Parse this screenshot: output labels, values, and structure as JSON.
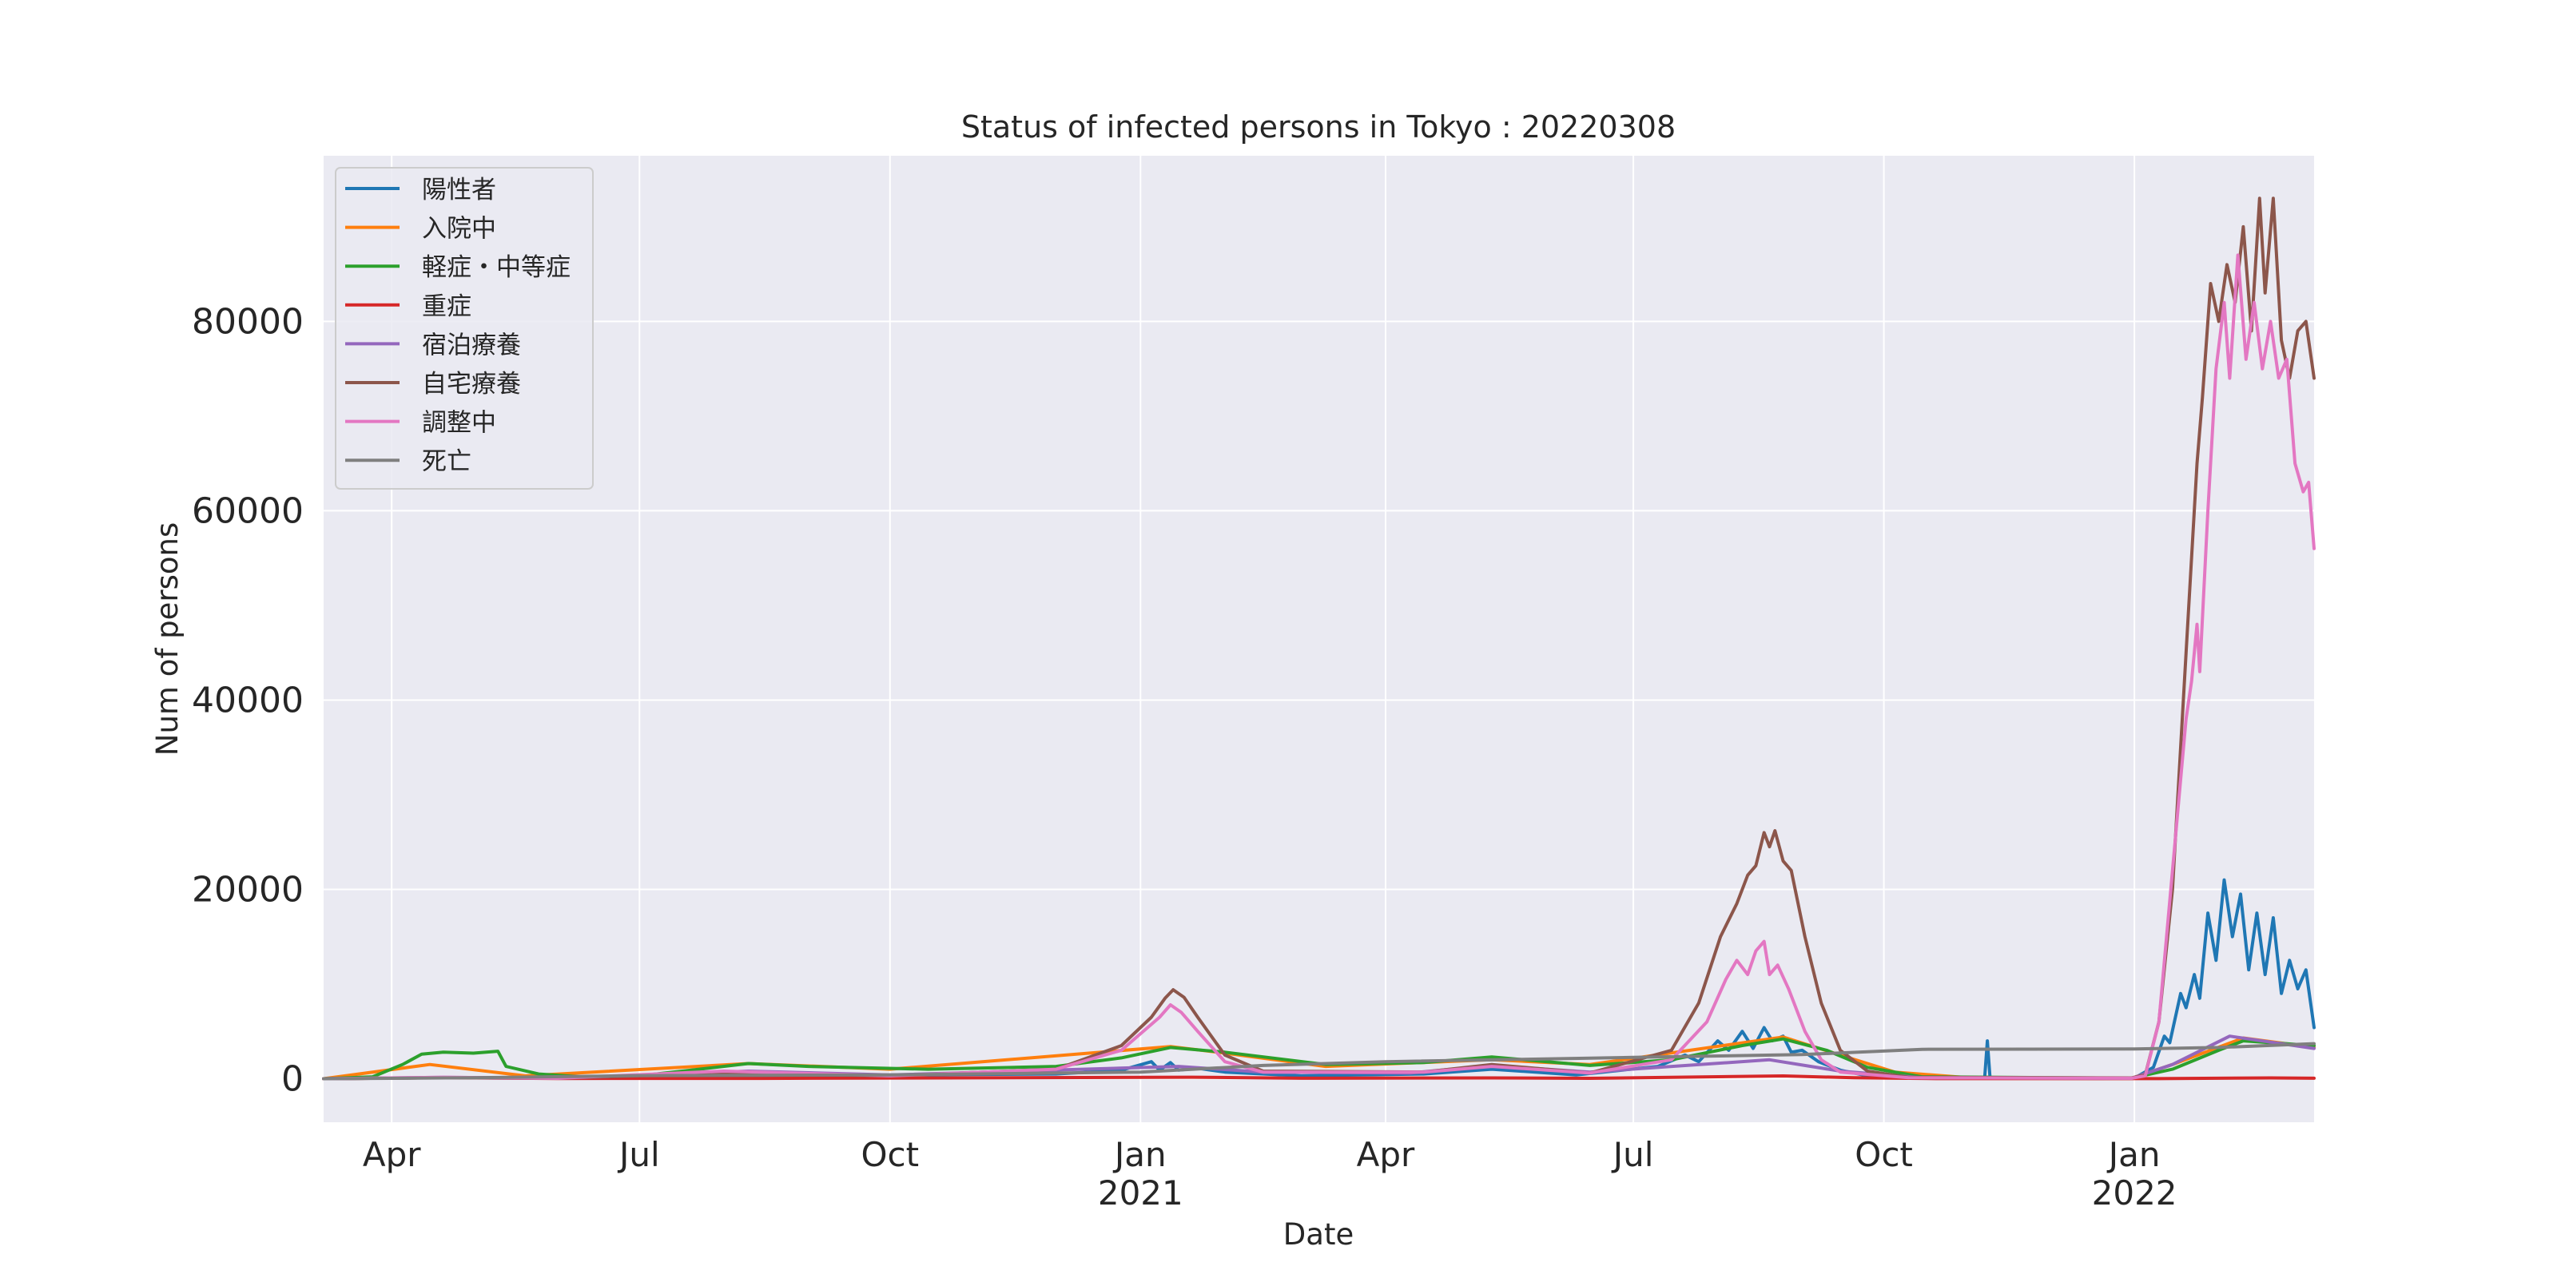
{
  "chart_data": {
    "type": "line",
    "title": "Status of infected persons in Tokyo : 20220308",
    "xlabel": "Date",
    "ylabel": "Num of persons",
    "x_range": [
      "2020-03-07",
      "2022-03-08"
    ],
    "ylim": [
      -4600,
      97500
    ],
    "y_ticks": [
      0,
      20000,
      40000,
      60000,
      80000
    ],
    "x_ticks": [
      {
        "date": "2020-04-01",
        "label": "Apr",
        "year": ""
      },
      {
        "date": "2020-07-01",
        "label": "Jul",
        "year": ""
      },
      {
        "date": "2020-10-01",
        "label": "Oct",
        "year": ""
      },
      {
        "date": "2021-01-01",
        "label": "Jan",
        "year": "2021"
      },
      {
        "date": "2021-04-01",
        "label": "Apr",
        "year": ""
      },
      {
        "date": "2021-07-01",
        "label": "Jul",
        "year": ""
      },
      {
        "date": "2021-10-01",
        "label": "Oct",
        "year": ""
      },
      {
        "date": "2022-01-01",
        "label": "Jan",
        "year": "2022"
      }
    ],
    "grid": true,
    "legend_position": "top-left",
    "series": [
      {
        "name": "陽性者",
        "color": "#1f77b4",
        "points": [
          [
            "2020-03-07",
            0
          ],
          [
            "2020-04-15",
            100
          ],
          [
            "2020-06-01",
            50
          ],
          [
            "2020-08-01",
            300
          ],
          [
            "2020-12-01",
            500
          ],
          [
            "2020-12-25",
            900
          ],
          [
            "2021-01-05",
            1800
          ],
          [
            "2021-01-08",
            900
          ],
          [
            "2021-01-12",
            1700
          ],
          [
            "2021-01-15",
            900
          ],
          [
            "2021-01-22",
            1100
          ],
          [
            "2021-02-01",
            700
          ],
          [
            "2021-03-01",
            300
          ],
          [
            "2021-04-15",
            500
          ],
          [
            "2021-05-10",
            1000
          ],
          [
            "2021-06-10",
            400
          ],
          [
            "2021-07-10",
            1300
          ],
          [
            "2021-07-20",
            2500
          ],
          [
            "2021-07-25",
            1800
          ],
          [
            "2021-08-01",
            4000
          ],
          [
            "2021-08-05",
            3000
          ],
          [
            "2021-08-10",
            5000
          ],
          [
            "2021-08-14",
            3200
          ],
          [
            "2021-08-18",
            5400
          ],
          [
            "2021-08-21",
            4000
          ],
          [
            "2021-08-25",
            4500
          ],
          [
            "2021-08-28",
            2800
          ],
          [
            "2021-09-01",
            3000
          ],
          [
            "2021-09-07",
            1800
          ],
          [
            "2021-09-15",
            900
          ],
          [
            "2021-09-25",
            300
          ],
          [
            "2021-10-15",
            60
          ],
          [
            "2021-11-07",
            40
          ],
          [
            "2021-11-08",
            4000
          ],
          [
            "2021-11-09",
            40
          ],
          [
            "2021-12-20",
            30
          ],
          [
            "2022-01-01",
            60
          ],
          [
            "2022-01-08",
            1200
          ],
          [
            "2022-01-12",
            4500
          ],
          [
            "2022-01-14",
            3800
          ],
          [
            "2022-01-18",
            9000
          ],
          [
            "2022-01-20",
            7500
          ],
          [
            "2022-01-23",
            11000
          ],
          [
            "2022-01-25",
            8500
          ],
          [
            "2022-01-28",
            17500
          ],
          [
            "2022-01-31",
            12500
          ],
          [
            "2022-02-03",
            21000
          ],
          [
            "2022-02-06",
            15000
          ],
          [
            "2022-02-09",
            19500
          ],
          [
            "2022-02-12",
            11500
          ],
          [
            "2022-02-15",
            17500
          ],
          [
            "2022-02-18",
            11000
          ],
          [
            "2022-02-21",
            17000
          ],
          [
            "2022-02-24",
            9000
          ],
          [
            "2022-02-27",
            12500
          ],
          [
            "2022-03-02",
            9500
          ],
          [
            "2022-03-05",
            11500
          ],
          [
            "2022-03-08",
            5400
          ]
        ]
      },
      {
        "name": "入院中",
        "color": "#ff7f0e",
        "points": [
          [
            "2020-03-07",
            0
          ],
          [
            "2020-04-15",
            1500
          ],
          [
            "2020-05-20",
            300
          ],
          [
            "2020-08-10",
            1600
          ],
          [
            "2020-10-01",
            1000
          ],
          [
            "2021-01-12",
            3400
          ],
          [
            "2021-02-01",
            2700
          ],
          [
            "2021-03-10",
            1300
          ],
          [
            "2021-05-10",
            2000
          ],
          [
            "2021-06-15",
            1500
          ],
          [
            "2021-08-25",
            4400
          ],
          [
            "2021-09-15",
            2500
          ],
          [
            "2021-10-05",
            700
          ],
          [
            "2021-11-01",
            100
          ],
          [
            "2021-12-31",
            50
          ],
          [
            "2022-01-15",
            1500
          ],
          [
            "2022-02-10",
            4300
          ],
          [
            "2022-03-08",
            3300
          ]
        ]
      },
      {
        "name": "軽症・中等症",
        "color": "#2ca02c",
        "points": [
          [
            "2020-03-07",
            0
          ],
          [
            "2020-03-25",
            200
          ],
          [
            "2020-04-05",
            1500
          ],
          [
            "2020-04-12",
            2600
          ],
          [
            "2020-04-20",
            2800
          ],
          [
            "2020-05-01",
            2700
          ],
          [
            "2020-05-10",
            2900
          ],
          [
            "2020-05-13",
            1300
          ],
          [
            "2020-05-25",
            500
          ],
          [
            "2020-06-10",
            200
          ],
          [
            "2020-07-01",
            300
          ],
          [
            "2020-07-20",
            900
          ],
          [
            "2020-08-10",
            1600
          ],
          [
            "2020-09-01",
            1300
          ],
          [
            "2020-10-15",
            1000
          ],
          [
            "2020-12-01",
            1300
          ],
          [
            "2020-12-25",
            2200
          ],
          [
            "2021-01-12",
            3300
          ],
          [
            "2021-02-01",
            2800
          ],
          [
            "2021-03-10",
            1500
          ],
          [
            "2021-04-15",
            1700
          ],
          [
            "2021-05-10",
            2300
          ],
          [
            "2021-06-15",
            1400
          ],
          [
            "2021-07-15",
            2000
          ],
          [
            "2021-08-10",
            3500
          ],
          [
            "2021-08-25",
            4200
          ],
          [
            "2021-09-10",
            3000
          ],
          [
            "2021-09-25",
            1200
          ],
          [
            "2021-10-15",
            200
          ],
          [
            "2021-12-31",
            60
          ],
          [
            "2022-01-15",
            1000
          ],
          [
            "2022-02-01",
            3000
          ],
          [
            "2022-02-10",
            4000
          ],
          [
            "2022-03-08",
            3500
          ]
        ]
      },
      {
        "name": "重症",
        "color": "#d62728",
        "points": [
          [
            "2020-03-07",
            0
          ],
          [
            "2020-04-20",
            100
          ],
          [
            "2020-06-01",
            20
          ],
          [
            "2020-08-15",
            30
          ],
          [
            "2021-01-20",
            160
          ],
          [
            "2021-03-01",
            50
          ],
          [
            "2021-05-10",
            80
          ],
          [
            "2021-06-15",
            40
          ],
          [
            "2021-08-25",
            290
          ],
          [
            "2021-09-20",
            100
          ],
          [
            "2021-10-20",
            10
          ],
          [
            "2022-01-10",
            5
          ],
          [
            "2022-02-20",
            85
          ],
          [
            "2022-03-08",
            50
          ]
        ]
      },
      {
        "name": "宿泊療養",
        "color": "#9467bd",
        "points": [
          [
            "2020-03-07",
            0
          ],
          [
            "2020-04-20",
            150
          ],
          [
            "2020-06-01",
            50
          ],
          [
            "2020-08-10",
            800
          ],
          [
            "2020-10-01",
            400
          ],
          [
            "2021-01-15",
            1300
          ],
          [
            "2021-02-15",
            700
          ],
          [
            "2021-04-10",
            600
          ],
          [
            "2021-05-10",
            1400
          ],
          [
            "2021-06-15",
            700
          ],
          [
            "2021-08-20",
            2000
          ],
          [
            "2021-09-15",
            800
          ],
          [
            "2021-10-15",
            100
          ],
          [
            "2021-12-31",
            50
          ],
          [
            "2022-01-15",
            1500
          ],
          [
            "2022-02-05",
            4500
          ],
          [
            "2022-03-08",
            3200
          ]
        ]
      },
      {
        "name": "自宅療養",
        "color": "#8c564b",
        "points": [
          [
            "2020-03-07",
            0
          ],
          [
            "2020-04-20",
            100
          ],
          [
            "2020-06-01",
            50
          ],
          [
            "2020-08-01",
            600
          ],
          [
            "2020-10-01",
            300
          ],
          [
            "2020-12-01",
            1000
          ],
          [
            "2020-12-25",
            3500
          ],
          [
            "2021-01-05",
            6500
          ],
          [
            "2021-01-10",
            8500
          ],
          [
            "2021-01-13",
            9400
          ],
          [
            "2021-01-17",
            8600
          ],
          [
            "2021-01-22",
            6500
          ],
          [
            "2021-02-01",
            2500
          ],
          [
            "2021-02-15",
            800
          ],
          [
            "2021-04-15",
            700
          ],
          [
            "2021-05-10",
            1500
          ],
          [
            "2021-06-15",
            600
          ],
          [
            "2021-07-15",
            3000
          ],
          [
            "2021-07-25",
            8000
          ],
          [
            "2021-08-02",
            15000
          ],
          [
            "2021-08-08",
            18500
          ],
          [
            "2021-08-12",
            21500
          ],
          [
            "2021-08-15",
            22500
          ],
          [
            "2021-08-18",
            26000
          ],
          [
            "2021-08-20",
            24500
          ],
          [
            "2021-08-22",
            26200
          ],
          [
            "2021-08-25",
            23000
          ],
          [
            "2021-08-28",
            22000
          ],
          [
            "2021-09-02",
            15000
          ],
          [
            "2021-09-08",
            8000
          ],
          [
            "2021-09-15",
            3000
          ],
          [
            "2021-09-25",
            800
          ],
          [
            "2021-10-10",
            150
          ],
          [
            "2021-12-31",
            80
          ],
          [
            "2022-01-05",
            400
          ],
          [
            "2022-01-10",
            6000
          ],
          [
            "2022-01-15",
            20000
          ],
          [
            "2022-01-20",
            45000
          ],
          [
            "2022-01-24",
            65000
          ],
          [
            "2022-01-26",
            72000
          ],
          [
            "2022-01-29",
            84000
          ],
          [
            "2022-02-01",
            80000
          ],
          [
            "2022-02-04",
            86000
          ],
          [
            "2022-02-07",
            82000
          ],
          [
            "2022-02-10",
            90000
          ],
          [
            "2022-02-13",
            79000
          ],
          [
            "2022-02-16",
            93000
          ],
          [
            "2022-02-18",
            83000
          ],
          [
            "2022-02-21",
            93000
          ],
          [
            "2022-02-24",
            78000
          ],
          [
            "2022-02-27",
            74000
          ],
          [
            "2022-03-02",
            79000
          ],
          [
            "2022-03-05",
            80000
          ],
          [
            "2022-03-08",
            74000
          ]
        ]
      },
      {
        "name": "調整中",
        "color": "#e377c2",
        "points": [
          [
            "2020-03-07",
            0
          ],
          [
            "2020-04-20",
            150
          ],
          [
            "2020-06-01",
            50
          ],
          [
            "2020-08-01",
            800
          ],
          [
            "2020-10-01",
            300
          ],
          [
            "2020-12-01",
            1000
          ],
          [
            "2020-12-25",
            3000
          ],
          [
            "2021-01-08",
            6500
          ],
          [
            "2021-01-12",
            7800
          ],
          [
            "2021-01-16",
            7000
          ],
          [
            "2021-01-22",
            5000
          ],
          [
            "2021-02-01",
            1800
          ],
          [
            "2021-02-15",
            700
          ],
          [
            "2021-04-15",
            700
          ],
          [
            "2021-05-10",
            1300
          ],
          [
            "2021-06-15",
            600
          ],
          [
            "2021-07-15",
            2000
          ],
          [
            "2021-07-28",
            6000
          ],
          [
            "2021-08-04",
            10500
          ],
          [
            "2021-08-08",
            12500
          ],
          [
            "2021-08-12",
            11000
          ],
          [
            "2021-08-15",
            13500
          ],
          [
            "2021-08-18",
            14500
          ],
          [
            "2021-08-20",
            11000
          ],
          [
            "2021-08-23",
            12000
          ],
          [
            "2021-08-27",
            9500
          ],
          [
            "2021-09-02",
            5000
          ],
          [
            "2021-09-08",
            2000
          ],
          [
            "2021-09-15",
            700
          ],
          [
            "2021-10-10",
            100
          ],
          [
            "2021-12-31",
            50
          ],
          [
            "2022-01-05",
            300
          ],
          [
            "2022-01-10",
            6000
          ],
          [
            "2022-01-15",
            22000
          ],
          [
            "2022-01-20",
            38000
          ],
          [
            "2022-01-22",
            42000
          ],
          [
            "2022-01-24",
            48000
          ],
          [
            "2022-01-25",
            43000
          ],
          [
            "2022-01-28",
            60000
          ],
          [
            "2022-01-31",
            75000
          ],
          [
            "2022-02-03",
            82000
          ],
          [
            "2022-02-05",
            74000
          ],
          [
            "2022-02-08",
            87000
          ],
          [
            "2022-02-11",
            76000
          ],
          [
            "2022-02-14",
            82000
          ],
          [
            "2022-02-17",
            75000
          ],
          [
            "2022-02-20",
            80000
          ],
          [
            "2022-02-23",
            74000
          ],
          [
            "2022-02-26",
            76000
          ],
          [
            "2022-03-01",
            65000
          ],
          [
            "2022-03-04",
            62000
          ],
          [
            "2022-03-06",
            63000
          ],
          [
            "2022-03-08",
            56000
          ]
        ]
      },
      {
        "name": "死亡",
        "color": "#7f7f7f",
        "points": [
          [
            "2020-03-07",
            0
          ],
          [
            "2020-05-01",
            100
          ],
          [
            "2020-07-01",
            325
          ],
          [
            "2020-10-01",
            400
          ],
          [
            "2021-01-01",
            700
          ],
          [
            "2021-02-15",
            1400
          ],
          [
            "2021-04-01",
            1800
          ],
          [
            "2021-07-01",
            2250
          ],
          [
            "2021-09-01",
            2550
          ],
          [
            "2021-10-15",
            3100
          ],
          [
            "2022-01-01",
            3150
          ],
          [
            "2022-02-01",
            3300
          ],
          [
            "2022-03-08",
            3700
          ]
        ]
      }
    ]
  }
}
